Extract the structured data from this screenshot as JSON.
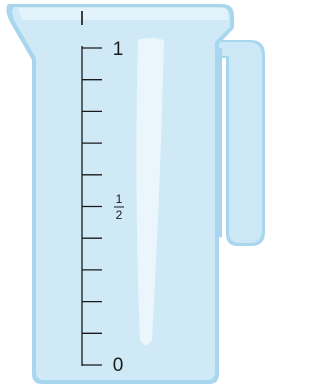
{
  "unit": "l",
  "labels": {
    "top": "1",
    "half": {
      "numerator": "1",
      "denominator": "2"
    },
    "bottom": "0"
  }
}
